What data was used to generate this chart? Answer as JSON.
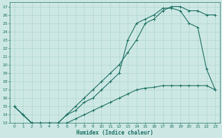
{
  "xlabel": "Humidex (Indice chaleur)",
  "background_color": "#cde8e4",
  "grid_color": "#b0d4ce",
  "line_color": "#1a6e62",
  "xlim": [
    -0.5,
    23.5
  ],
  "ylim": [
    13,
    27.5
  ],
  "xticks": [
    0,
    1,
    2,
    3,
    4,
    5,
    6,
    7,
    8,
    9,
    10,
    11,
    12,
    13,
    14,
    15,
    16,
    17,
    18,
    19,
    20,
    21,
    22,
    23
  ],
  "yticks": [
    13,
    14,
    15,
    16,
    17,
    18,
    19,
    20,
    21,
    22,
    23,
    24,
    25,
    26,
    27
  ],
  "line1_x": [
    0,
    1,
    2,
    3,
    4,
    5,
    6,
    7,
    8,
    9,
    10,
    11,
    12,
    13,
    14,
    15,
    16,
    17,
    18,
    19,
    20,
    21,
    22,
    23
  ],
  "line1_y": [
    15,
    14,
    13,
    13,
    13,
    13,
    14,
    15,
    16,
    17,
    18,
    19,
    20,
    21.5,
    23,
    25,
    25.5,
    26.5,
    27,
    27,
    26.5,
    26.5,
    26,
    26
  ],
  "line2_x": [
    0,
    1,
    2,
    3,
    4,
    5,
    6,
    7,
    8,
    9,
    10,
    11,
    12,
    13,
    14,
    15,
    16,
    17,
    18,
    19,
    20,
    21,
    22,
    23
  ],
  "line2_y": [
    15,
    14,
    13,
    13,
    13,
    13,
    14,
    14.5,
    15.5,
    16,
    17,
    18,
    19,
    23,
    25,
    25.5,
    26,
    26.8,
    26.8,
    26.5,
    25,
    24.5,
    19.5,
    17
  ],
  "line3_x": [
    0,
    1,
    2,
    3,
    4,
    5,
    6,
    7,
    8,
    9,
    10,
    11,
    12,
    13,
    14,
    15,
    16,
    17,
    18,
    19,
    20,
    21,
    22,
    23
  ],
  "line3_y": [
    15,
    14,
    13,
    13,
    13,
    13,
    13,
    13.5,
    14,
    14.5,
    15,
    15.5,
    16,
    16.5,
    17,
    17.2,
    17.3,
    17.5,
    17.5,
    17.5,
    17.5,
    17.5,
    17.5,
    17
  ]
}
